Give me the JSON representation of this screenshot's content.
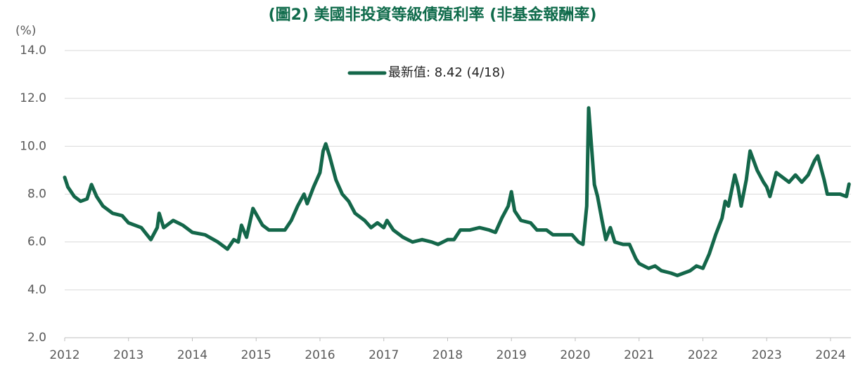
{
  "chart_data": {
    "type": "line",
    "title": "(圖2) 美國非投資等級債殖利率 (非基金報酬率)",
    "y_label": "(%)",
    "x": [
      2012.0,
      2012.05,
      2012.15,
      2012.25,
      2012.35,
      2012.42,
      2012.5,
      2012.6,
      2012.75,
      2012.9,
      2013.0,
      2013.2,
      2013.35,
      2013.45,
      2013.48,
      2013.55,
      2013.7,
      2013.85,
      2014.0,
      2014.2,
      2014.4,
      2014.5,
      2014.55,
      2014.65,
      2014.72,
      2014.77,
      2014.85,
      2014.95,
      2015.1,
      2015.2,
      2015.35,
      2015.45,
      2015.55,
      2015.65,
      2015.75,
      2015.8,
      2015.9,
      2016.0,
      2016.05,
      2016.09,
      2016.15,
      2016.25,
      2016.35,
      2016.45,
      2016.55,
      2016.7,
      2016.8,
      2016.9,
      2017.0,
      2017.05,
      2017.15,
      2017.3,
      2017.45,
      2017.6,
      2017.75,
      2017.85,
      2018.0,
      2018.1,
      2018.2,
      2018.35,
      2018.5,
      2018.65,
      2018.75,
      2018.85,
      2018.95,
      2019.0,
      2019.05,
      2019.15,
      2019.3,
      2019.4,
      2019.55,
      2019.65,
      2019.8,
      2019.95,
      2020.05,
      2020.12,
      2020.18,
      2020.21,
      2020.26,
      2020.3,
      2020.35,
      2020.42,
      2020.48,
      2020.55,
      2020.62,
      2020.75,
      2020.85,
      2020.95,
      2021.0,
      2021.15,
      2021.25,
      2021.35,
      2021.5,
      2021.6,
      2021.7,
      2021.8,
      2021.9,
      2022.0,
      2022.1,
      2022.2,
      2022.3,
      2022.35,
      2022.4,
      2022.5,
      2022.55,
      2022.6,
      2022.68,
      2022.74,
      2022.85,
      2022.95,
      2023.0,
      2023.05,
      2023.15,
      2023.25,
      2023.35,
      2023.45,
      2023.55,
      2023.65,
      2023.75,
      2023.8,
      2023.9,
      2023.95,
      2024.05,
      2024.15,
      2024.25,
      2024.29
    ],
    "series": [
      {
        "name": "最新值: 8.42 (4/18)",
        "color": "#14674a",
        "values": [
          8.7,
          8.3,
          7.9,
          7.7,
          7.8,
          8.4,
          7.9,
          7.5,
          7.2,
          7.1,
          6.8,
          6.6,
          6.1,
          6.6,
          7.2,
          6.6,
          6.9,
          6.7,
          6.4,
          6.3,
          6.0,
          5.8,
          5.7,
          6.1,
          6.0,
          6.7,
          6.2,
          7.4,
          6.7,
          6.5,
          6.5,
          6.5,
          6.9,
          7.5,
          8.0,
          7.6,
          8.3,
          8.9,
          9.8,
          10.1,
          9.6,
          8.6,
          8.0,
          7.7,
          7.2,
          6.9,
          6.6,
          6.8,
          6.6,
          6.9,
          6.5,
          6.2,
          6.0,
          6.1,
          6.0,
          5.9,
          6.1,
          6.1,
          6.5,
          6.5,
          6.6,
          6.5,
          6.4,
          7.0,
          7.5,
          8.1,
          7.3,
          6.9,
          6.8,
          6.5,
          6.5,
          6.3,
          6.3,
          6.3,
          6.0,
          5.9,
          7.5,
          11.6,
          9.8,
          8.4,
          7.9,
          6.9,
          6.1,
          6.6,
          6.0,
          5.9,
          5.9,
          5.3,
          5.1,
          4.9,
          5.0,
          4.8,
          4.7,
          4.6,
          4.7,
          4.8,
          5.0,
          4.9,
          5.5,
          6.3,
          7.0,
          7.7,
          7.5,
          8.8,
          8.3,
          7.5,
          8.6,
          9.8,
          9.0,
          8.5,
          8.3,
          7.9,
          8.9,
          8.7,
          8.5,
          8.8,
          8.5,
          8.8,
          9.4,
          9.6,
          8.6,
          8.0,
          8.0,
          8.0,
          7.9,
          8.42
        ]
      }
    ],
    "xlim": [
      2012,
      2024.32
    ],
    "xticks": [
      2012,
      2013,
      2014,
      2015,
      2016,
      2017,
      2018,
      2019,
      2020,
      2021,
      2022,
      2023,
      2024
    ],
    "ylim": [
      2,
      14
    ],
    "yticks": [
      {
        "value": 2,
        "label": "2.0"
      },
      {
        "value": 4,
        "label": "4.0"
      },
      {
        "value": 6,
        "label": "6.0"
      },
      {
        "value": 8,
        "label": "8.0"
      },
      {
        "value": 10,
        "label": "10.0"
      },
      {
        "value": 12,
        "label": "12.0"
      },
      {
        "value": 14,
        "label": "14.0"
      }
    ],
    "grid": true
  }
}
